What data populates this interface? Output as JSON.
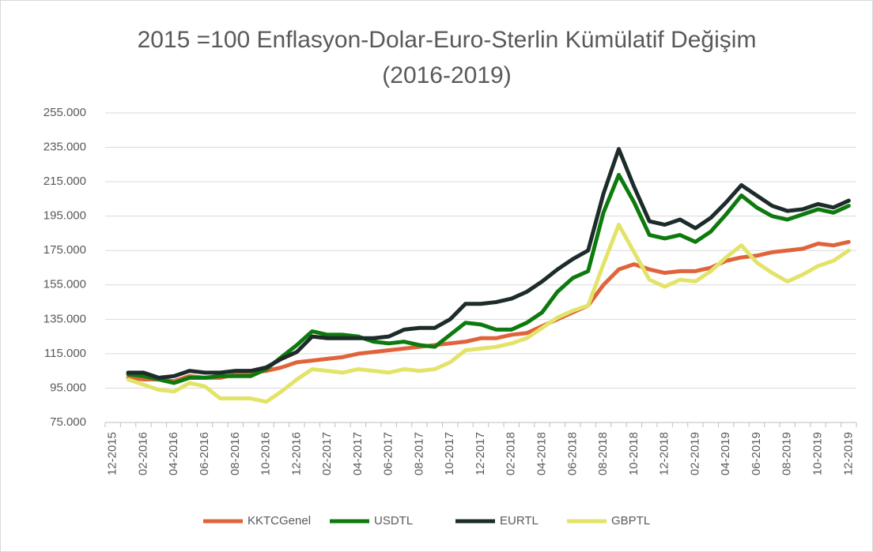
{
  "chart_data": {
    "type": "line",
    "title": "2015 =100 Enflasyon-Dolar-Euro-Sterlin Kümülatif Değişim (2016-2019)",
    "categories": [
      "12-2015",
      null,
      "02-2016",
      null,
      "04-2016",
      null,
      "06-2016",
      null,
      "08-2016",
      null,
      "10-2016",
      null,
      "12-2016",
      null,
      "02-2017",
      null,
      "04-2017",
      null,
      "06-2017",
      null,
      "08-2017",
      null,
      "10-2017",
      null,
      "12-2017",
      null,
      "02-2018",
      null,
      "04-2018",
      null,
      "06-2018",
      null,
      "08-2018",
      null,
      "10-2018",
      null,
      "12-2018",
      null,
      "02-2019",
      null,
      "04-2019",
      null,
      "06-2019",
      null,
      "08-2019",
      null,
      "10-2019",
      null,
      "12-2019"
    ],
    "series": [
      {
        "name": "KKTCGenel",
        "color": "#e0643a",
        "values": [
          null,
          101,
          100,
          100,
          99,
          102,
          101,
          101,
          103,
          104,
          105,
          107,
          110,
          111,
          112,
          113,
          115,
          116,
          117,
          118,
          119,
          120,
          121,
          122,
          124,
          124,
          126,
          127,
          131,
          135,
          139,
          143,
          155,
          164,
          167,
          164,
          162,
          163,
          163,
          165,
          169,
          171,
          172,
          174,
          175,
          176,
          179,
          178,
          180
        ]
      },
      {
        "name": "USDTL",
        "color": "#0d7a0d",
        "values": [
          null,
          103,
          102,
          100,
          98,
          101,
          101,
          102,
          102,
          102,
          106,
          113,
          120,
          128,
          126,
          126,
          125,
          122,
          121,
          122,
          120,
          119,
          126,
          133,
          132,
          129,
          129,
          133,
          139,
          151,
          159,
          163,
          197,
          219,
          203,
          184,
          182,
          184,
          180,
          186,
          196,
          207,
          200,
          195,
          193,
          196,
          199,
          197,
          201
        ]
      },
      {
        "name": "EURTL",
        "color": "#1d2b2b",
        "values": [
          null,
          104,
          104,
          101,
          102,
          105,
          104,
          104,
          105,
          105,
          107,
          112,
          116,
          125,
          124,
          124,
          124,
          124,
          125,
          129,
          130,
          130,
          135,
          144,
          144,
          145,
          147,
          151,
          157,
          164,
          170,
          175,
          208,
          234,
          212,
          192,
          190,
          193,
          188,
          194,
          203,
          213,
          207,
          201,
          198,
          199,
          202,
          200,
          204
        ]
      },
      {
        "name": "GBPTL",
        "color": "#e3e36a",
        "values": [
          null,
          100,
          97,
          94,
          93,
          98,
          96,
          89,
          89,
          89,
          87,
          93,
          100,
          106,
          105,
          104,
          106,
          105,
          104,
          106,
          105,
          106,
          110,
          117,
          118,
          119,
          121,
          124,
          130,
          136,
          140,
          143,
          167,
          190,
          174,
          158,
          154,
          158,
          157,
          163,
          171,
          178,
          168,
          162,
          157,
          161,
          166,
          169,
          175
        ]
      }
    ],
    "ylim": [
      75,
      255
    ],
    "yticks": [
      {
        "value": 75,
        "label": "75.000"
      },
      {
        "value": 95,
        "label": "95.000"
      },
      {
        "value": 115,
        "label": "115.000"
      },
      {
        "value": 135,
        "label": "135.000"
      },
      {
        "value": 155,
        "label": "155.000"
      },
      {
        "value": 175,
        "label": "175.000"
      },
      {
        "value": 195,
        "label": "195.000"
      },
      {
        "value": 215,
        "label": "215.000"
      },
      {
        "value": 235,
        "label": "235.000"
      },
      {
        "value": 255,
        "label": "255.000"
      }
    ],
    "grid": true
  }
}
